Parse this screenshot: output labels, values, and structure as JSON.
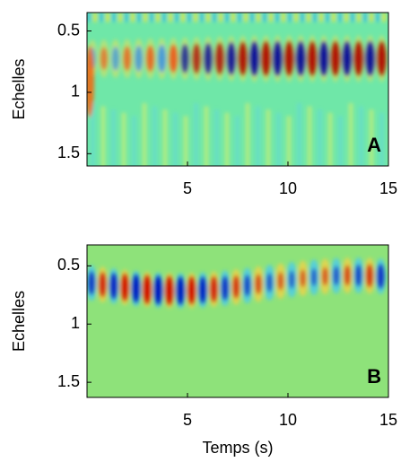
{
  "chart_data": [
    {
      "type": "heatmap",
      "panel_label": "A",
      "ylabel": "Echelles",
      "xlim": [
        0,
        15
      ],
      "xticks": [
        5,
        10,
        15
      ],
      "ylim": [
        0.35,
        1.6
      ],
      "yticks": [
        0.5,
        1,
        1.5
      ],
      "y_inverted": true,
      "background": "#6fe7a8"
    },
    {
      "type": "heatmap",
      "panel_label": "B",
      "ylabel": "Echelles",
      "xlabel": "Temps (s)",
      "xlim": [
        0,
        15
      ],
      "xticks": [
        5,
        10,
        15
      ],
      "ylim": [
        0.32,
        1.63
      ],
      "yticks": [
        0.5,
        1,
        1.5
      ],
      "y_inverted": true,
      "background": "#8ee27a"
    }
  ]
}
